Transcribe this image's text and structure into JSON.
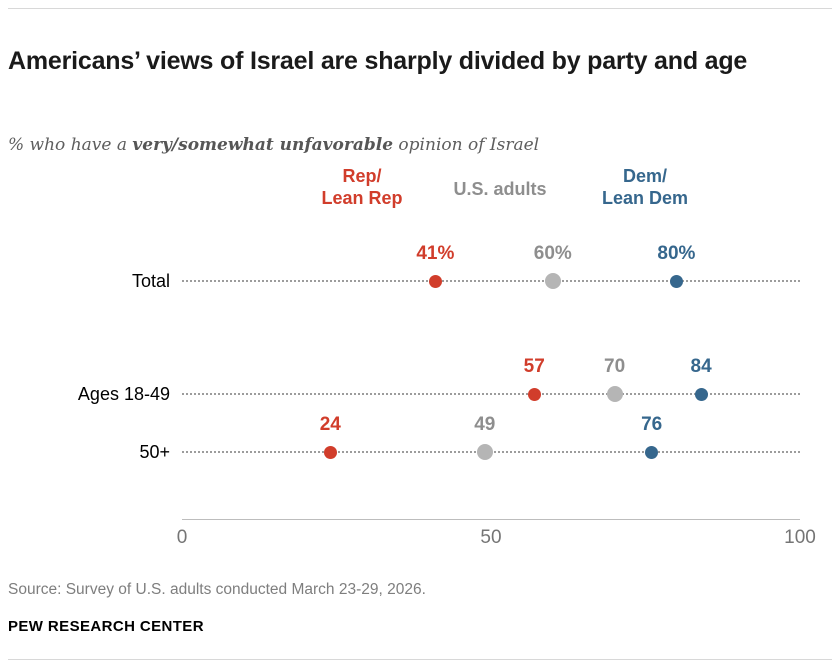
{
  "header": {
    "title": "Americans’ views of Israel are sharply divided by party and age",
    "subtitle_prefix": "% who have a ",
    "subtitle_bold": "very/somewhat unfavorable",
    "subtitle_suffix": " opinion of Israel"
  },
  "chart_data": {
    "type": "scatter",
    "title": "Americans’ views of Israel are sharply divided by party and age",
    "categories": [
      "Total",
      "Ages 18-49",
      "50+"
    ],
    "series": [
      {
        "name": "Rep/Lean Rep",
        "legend_lines": [
          "Rep/",
          "Lean Rep"
        ],
        "color": "#d13d2b",
        "label_color": "#d13d2b",
        "values": [
          41,
          57,
          24
        ],
        "labels": [
          "41%",
          "57",
          "24"
        ]
      },
      {
        "name": "U.S. adults",
        "legend_lines": [
          "U.S. adults"
        ],
        "color": "#b5b5b5",
        "label_color": "#8e8e8e",
        "values": [
          60,
          70,
          49
        ],
        "labels": [
          "60%",
          "70",
          "49"
        ]
      },
      {
        "name": "Dem/Lean Dem",
        "legend_lines": [
          "Dem/",
          "Lean Dem"
        ],
        "color": "#36678d",
        "label_color": "#36678d",
        "values": [
          80,
          84,
          76
        ],
        "labels": [
          "80%",
          "84",
          "76"
        ]
      }
    ],
    "xlim": [
      0,
      100
    ],
    "x_ticks": [
      0,
      50,
      100
    ],
    "grid": "dotted-row-leaders",
    "legend_position": "top"
  },
  "source": "Source: Survey of U.S. adults conducted March 23-29, 2026.",
  "footer": "PEW RESEARCH CENTER"
}
